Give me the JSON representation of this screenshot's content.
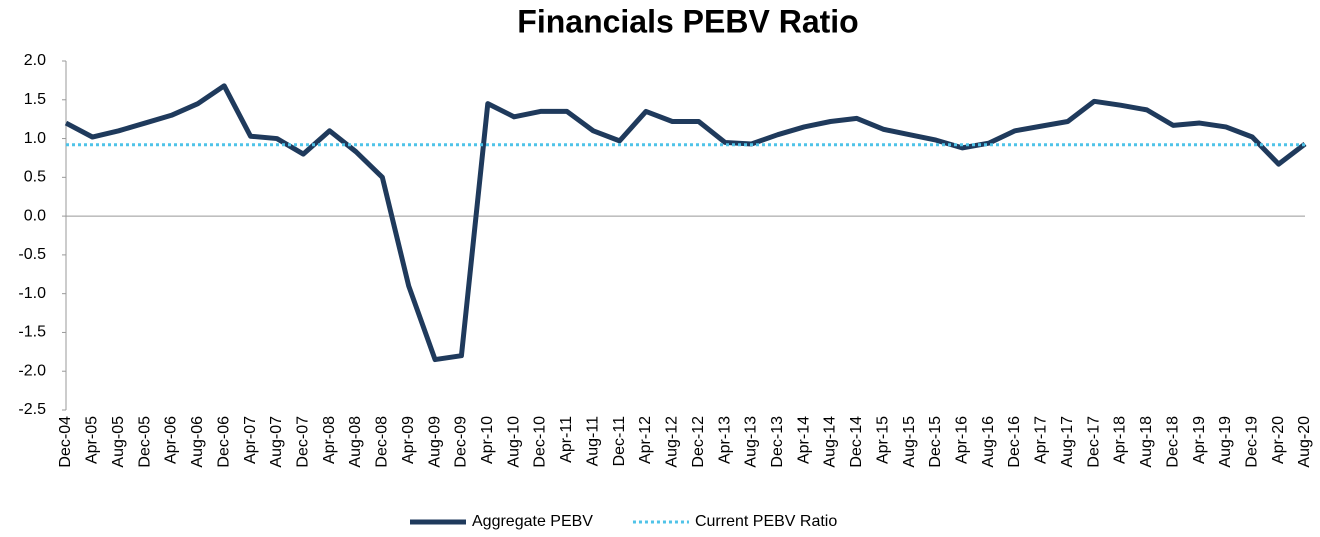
{
  "chart_data": {
    "type": "line",
    "title": "Financials PEBV Ratio",
    "categories": [
      "Dec-04",
      "Apr-05",
      "Aug-05",
      "Dec-05",
      "Apr-06",
      "Aug-06",
      "Dec-06",
      "Apr-07",
      "Aug-07",
      "Dec-07",
      "Apr-08",
      "Aug-08",
      "Dec-08",
      "Apr-09",
      "Aug-09",
      "Dec-09",
      "Apr-10",
      "Aug-10",
      "Dec-10",
      "Apr-11",
      "Aug-11",
      "Dec-11",
      "Apr-12",
      "Aug-12",
      "Dec-12",
      "Apr-13",
      "Aug-13",
      "Dec-13",
      "Apr-14",
      "Aug-14",
      "Dec-14",
      "Apr-15",
      "Aug-15",
      "Dec-15",
      "Apr-16",
      "Aug-16",
      "Dec-16",
      "Apr-17",
      "Aug-17",
      "Dec-17",
      "Apr-18",
      "Aug-18",
      "Dec-18",
      "Apr-19",
      "Aug-19",
      "Dec-19",
      "Apr-20",
      "Aug-20"
    ],
    "series": [
      {
        "name": "Aggregate PEBV",
        "color": "#1f3a5c",
        "values": [
          1.2,
          1.02,
          1.1,
          1.2,
          1.3,
          1.45,
          1.68,
          1.03,
          1.0,
          0.8,
          1.1,
          0.83,
          0.5,
          -0.9,
          -1.85,
          -1.8,
          1.45,
          1.28,
          1.35,
          1.35,
          1.1,
          0.97,
          1.35,
          1.22,
          1.22,
          0.95,
          0.93,
          1.05,
          1.15,
          1.22,
          1.26,
          1.12,
          1.05,
          0.98,
          0.88,
          0.94,
          1.1,
          1.16,
          1.22,
          1.48,
          1.43,
          1.37,
          1.17,
          1.2,
          1.15,
          1.02,
          0.67,
          0.93
        ]
      },
      {
        "name": "Current PEBV Ratio",
        "color": "#4fc3e8",
        "value": 0.92,
        "style": "dotted"
      }
    ],
    "ylim": [
      -2.5,
      2.0
    ],
    "yticks": [
      {
        "value": 2.0,
        "label": "2.0"
      },
      1.5,
      {
        "value": 1.0,
        "label": "1.0"
      },
      0.5,
      {
        "value": 0.0,
        "label": "0.0"
      },
      -0.5,
      {
        "value": -1.0,
        "label": "-1.0"
      },
      -1.5,
      {
        "value": -2.0,
        "label": "-2.0"
      },
      -2.5
    ]
  }
}
